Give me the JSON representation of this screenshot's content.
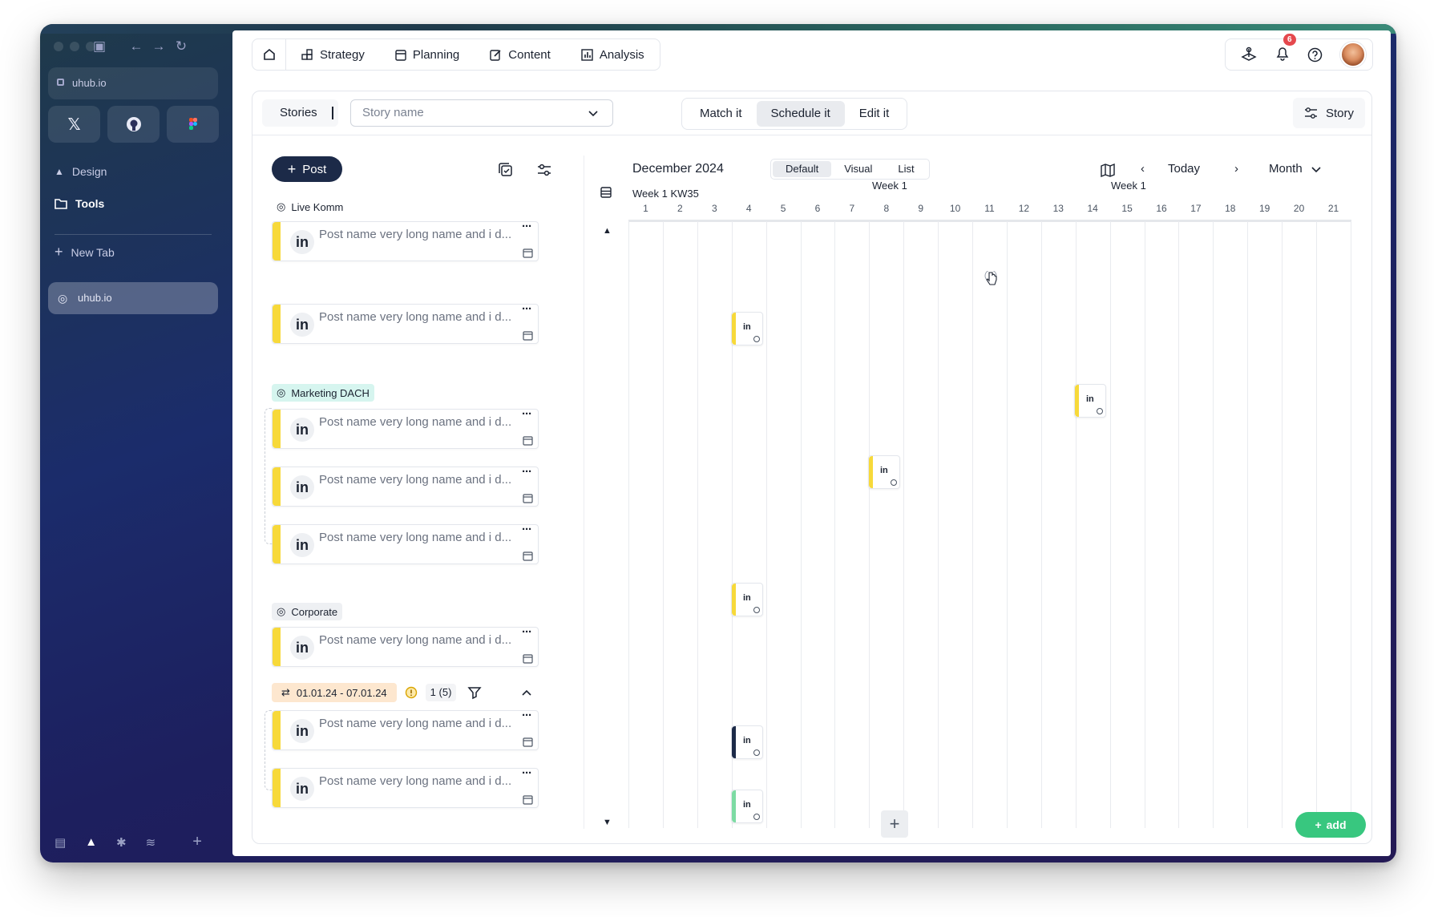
{
  "browser": {
    "url": "uhub.io",
    "pinned": [
      {
        "icon": "x-logo-icon",
        "glyph": "𝕏"
      },
      {
        "icon": "github-icon",
        "glyph": "●"
      },
      {
        "icon": "figma-icon",
        "glyph": "▪"
      }
    ],
    "sections": [
      {
        "label": "Design",
        "icon": "design-icon"
      },
      {
        "label": "Tools",
        "icon": "folder-icon"
      }
    ],
    "new_tab_label": "New Tab",
    "active_tab_label": "uhub.io"
  },
  "topnav": {
    "tabs": [
      {
        "label": "Strategy",
        "icon": "strategy-icon"
      },
      {
        "label": "Planning",
        "icon": "calendar-icon"
      },
      {
        "label": "Content",
        "icon": "edit-icon"
      },
      {
        "label": "Analysis",
        "icon": "chart-icon"
      }
    ],
    "notification_count": "6"
  },
  "toolbar": {
    "stories_label": "Stories",
    "story_placeholder": "Story name",
    "modes": [
      "Match it",
      "Schedule it",
      "Edit it"
    ],
    "active_mode": "Schedule it",
    "story_button": "Story"
  },
  "list": {
    "post_button": "Post",
    "post_title": "Post name very long name and i d...",
    "groups": [
      {
        "name": "Live Komm",
        "color": "#ffffff"
      },
      {
        "name": "Marketing DACH",
        "color": "#d6f5ef"
      },
      {
        "name": "Corporate",
        "color": "#eef0f3"
      }
    ],
    "date_range": "01.01.24 - 07.01.24",
    "range_count": "1 (5)"
  },
  "calendar": {
    "month_title": "December 2024",
    "views": [
      "Default",
      "Visual",
      "List"
    ],
    "active_view": "Default",
    "today_label": "Today",
    "period_label": "Month",
    "week_labels": [
      "Week 1 KW35",
      "Week 1",
      "Week 1"
    ],
    "days": [
      "1",
      "2",
      "3",
      "4",
      "5",
      "6",
      "7",
      "8",
      "9",
      "10",
      "11",
      "12",
      "13",
      "14",
      "15",
      "16",
      "17",
      "18",
      "19",
      "20",
      "21"
    ],
    "add_button": "add"
  },
  "colors": {
    "accent_yellow": "#f7d93a",
    "post_button": "#1c2a48",
    "add_button": "#38c77f",
    "event_dark": "#1c2a48",
    "event_green": "#7ddba3"
  }
}
